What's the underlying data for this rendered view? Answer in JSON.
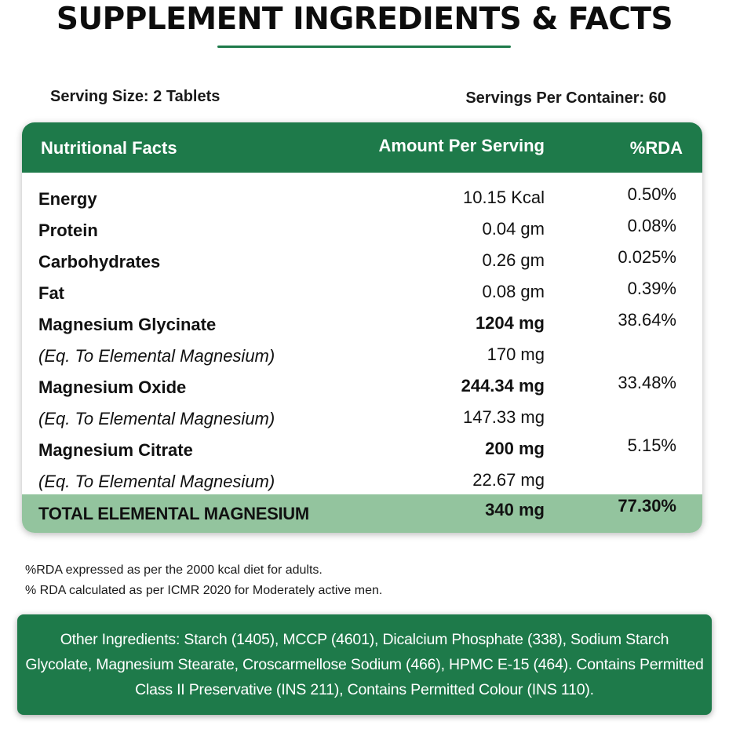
{
  "title": "SUPPLEMENT INGREDIENTS & FACTS",
  "serving": {
    "size": "Serving Size: 2 Tablets",
    "per_container": "Servings Per Container: 60"
  },
  "table": {
    "headers": {
      "name": "Nutritional Facts",
      "amount": "Amount Per Serving",
      "rda": "%RDA"
    },
    "rows": [
      {
        "name": "Energy",
        "amount": "10.15 Kcal",
        "rda": "0.50%"
      },
      {
        "name": "Protein",
        "amount": "0.04 gm",
        "rda": "0.08%"
      },
      {
        "name": "Carbohydrates",
        "amount": "0.26 gm",
        "rda": "0.025%"
      },
      {
        "name": "Fat",
        "amount": "0.08 gm",
        "rda": "0.39%"
      },
      {
        "name": "Magnesium Glycinate",
        "amount": "1204 mg",
        "rda": "38.64%"
      },
      {
        "name": "(Eq. To Elemental Magnesium)",
        "amount": "170 mg",
        "rda": ""
      },
      {
        "name": "Magnesium Oxide",
        "amount": "244.34 mg",
        "rda": "33.48%"
      },
      {
        "name": "(Eq. To Elemental Magnesium)",
        "amount": "147.33 mg",
        "rda": ""
      },
      {
        "name": "Magnesium Citrate",
        "amount": "200 mg",
        "rda": "5.15%"
      },
      {
        "name": "(Eq. To Elemental Magnesium)",
        "amount": "22.67 mg",
        "rda": ""
      }
    ],
    "total": {
      "name": "TOTAL ELEMENTAL MAGNESIUM",
      "amount": "340 mg",
      "rda": "77.30%"
    }
  },
  "notes": [
    "%RDA expressed as per the 2000 kcal diet for adults.",
    "% RDA calculated as per ICMR 2020 for Moderately active men."
  ],
  "ingredients": "Other Ingredients: Starch (1405), MCCP (4601), Dicalcium Phosphate (338), Sodium Starch Glycolate, Magnesium Stearate, Croscarmellose Sodium (466), HPMC E-15 (464). Contains Permitted Class II Preservative (INS 211), Contains Permitted Colour (INS 110).",
  "colors": {
    "brand_green": "#1e7a4a",
    "total_row_green": "#93c49e"
  }
}
